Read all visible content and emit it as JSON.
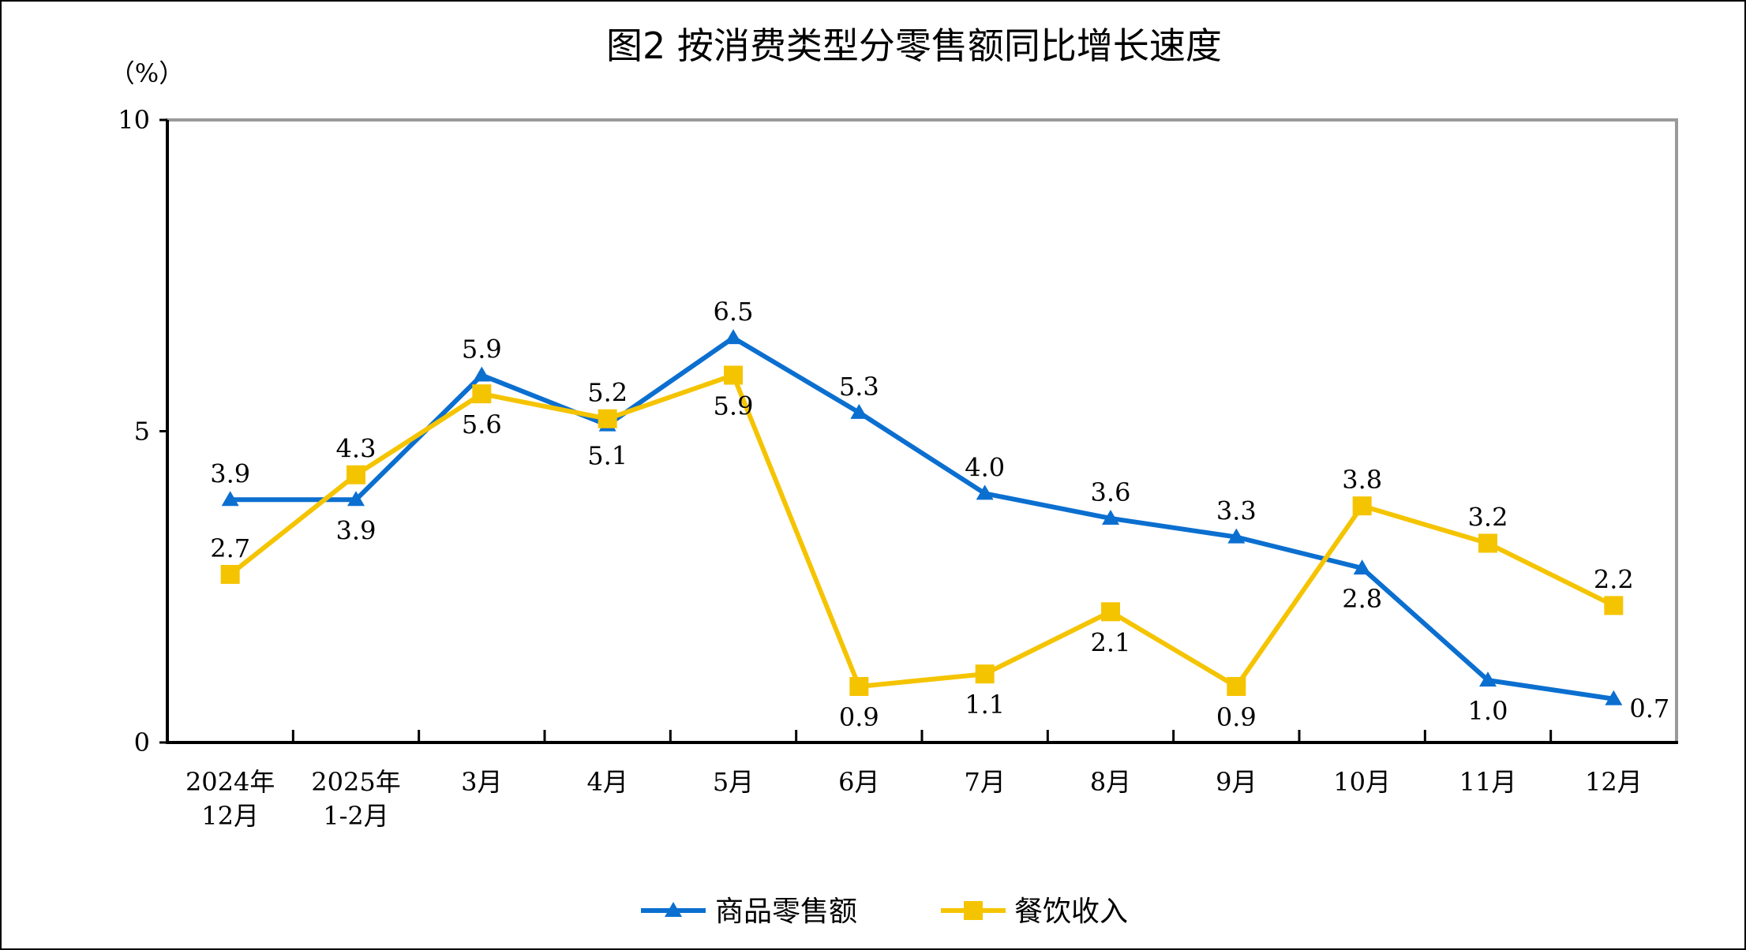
{
  "title": "图2  按消费类型分零售额同比增长速度",
  "unit_label": "（%）",
  "legend": [
    {
      "label": "商品零售额",
      "color": "#0B6FD0",
      "marker": "triangle"
    },
    {
      "label": "餐饮收入",
      "color": "#F5C400",
      "marker": "square"
    }
  ],
  "chart_data": {
    "type": "line",
    "title": "图2  按消费类型分零售额同比增长速度",
    "ylabel": "（%）",
    "xlabel": "",
    "ylim": [
      0,
      10
    ],
    "yticks": [
      0,
      5,
      10
    ],
    "categories": [
      [
        "2024年",
        "12月"
      ],
      [
        "2025年",
        "1-2月"
      ],
      [
        "3月"
      ],
      [
        "4月"
      ],
      [
        "5月"
      ],
      [
        "6月"
      ],
      [
        "7月"
      ],
      [
        "8月"
      ],
      [
        "9月"
      ],
      [
        "10月"
      ],
      [
        "11月"
      ],
      [
        "12月"
      ]
    ],
    "series": [
      {
        "name": "商品零售额",
        "color": "#0B6FD0",
        "marker": "triangle",
        "values": [
          3.9,
          3.9,
          5.9,
          5.1,
          6.5,
          5.3,
          4.0,
          3.6,
          3.3,
          2.8,
          1.0,
          0.7
        ],
        "labels": [
          "3.9",
          "3.9",
          "5.9",
          "5.1",
          "6.5",
          "5.3",
          "4.0",
          "3.6",
          "3.3",
          "2.8",
          "1.0",
          "0.7"
        ]
      },
      {
        "name": "餐饮收入",
        "color": "#F5C400",
        "marker": "square",
        "values": [
          2.7,
          4.3,
          5.6,
          5.2,
          5.9,
          0.9,
          1.1,
          2.1,
          0.9,
          3.8,
          3.2,
          2.2
        ],
        "labels": [
          "2.7",
          "4.3",
          "5.6",
          "5.2",
          "5.9",
          "0.9",
          "1.1",
          "2.1",
          "0.9",
          "3.8",
          "3.2",
          "2.2"
        ]
      }
    ],
    "grid": false,
    "legend_position": "bottom"
  }
}
